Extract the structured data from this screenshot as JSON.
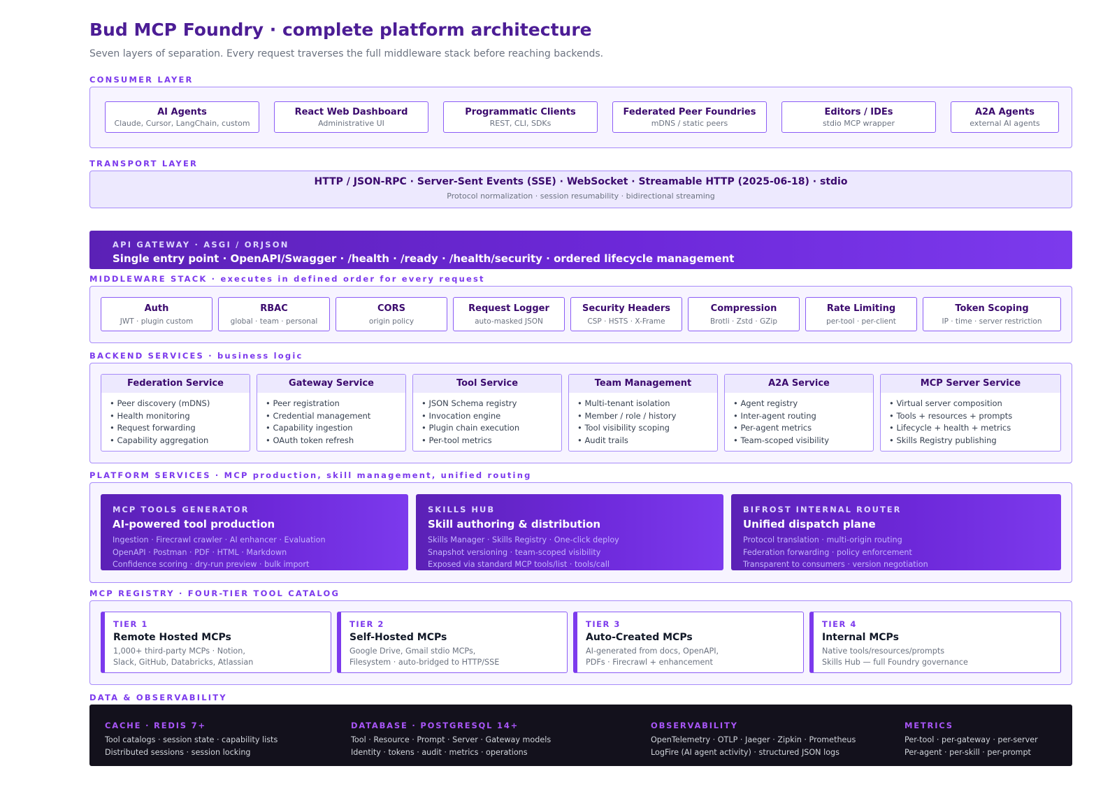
{
  "header": {
    "title": "Bud MCP Foundry · complete platform architecture",
    "subtitle": "Seven layers of separation. Every request traverses the full middleware stack before reaching backends."
  },
  "consumer": {
    "label": "CONSUMER LAYER",
    "items": [
      {
        "title": "AI Agents",
        "sub": "Claude, Cursor, LangChain, custom"
      },
      {
        "title": "React Web Dashboard",
        "sub": "Administrative UI"
      },
      {
        "title": "Programmatic Clients",
        "sub": "REST, CLI, SDKs"
      },
      {
        "title": "Federated Peer Foundries",
        "sub": "mDNS / static peers"
      },
      {
        "title": "Editors / IDEs",
        "sub": "stdio MCP wrapper"
      },
      {
        "title": "A2A Agents",
        "sub": "external AI agents"
      }
    ]
  },
  "transport": {
    "label": "TRANSPORT LAYER",
    "title": "HTTP / JSON-RPC · Server-Sent Events (SSE) · WebSocket · Streamable HTTP (2025-06-18) · stdio",
    "sub": "Protocol normalization · session resumability · bidirectional streaming"
  },
  "gateway": {
    "kicker": "API GATEWAY · ASGI / ORJSON",
    "title": "Single entry point · OpenAPI/Swagger · /health · /ready · /health/security · ordered lifecycle management"
  },
  "middleware": {
    "label": "MIDDLEWARE STACK · executes in defined order for every request",
    "items": [
      {
        "title": "Auth",
        "sub": "JWT · plugin custom"
      },
      {
        "title": "RBAC",
        "sub": "global · team · personal"
      },
      {
        "title": "CORS",
        "sub": "origin policy"
      },
      {
        "title": "Request Logger",
        "sub": "auto-masked JSON"
      },
      {
        "title": "Security Headers",
        "sub": "CSP · HSTS · X-Frame"
      },
      {
        "title": "Compression",
        "sub": "Brotli · Zstd · GZip"
      },
      {
        "title": "Rate Limiting",
        "sub": "per-tool · per-client"
      },
      {
        "title": "Token Scoping",
        "sub": "IP · time · server restriction"
      }
    ]
  },
  "backend": {
    "label": "BACKEND SERVICES · business logic",
    "items": [
      {
        "title": "Federation Service",
        "bullets": [
          "• Peer discovery (mDNS)",
          "• Health monitoring",
          "• Request forwarding",
          "• Capability aggregation"
        ]
      },
      {
        "title": "Gateway Service",
        "bullets": [
          "• Peer registration",
          "• Credential management",
          "• Capability ingestion",
          "• OAuth token refresh"
        ]
      },
      {
        "title": "Tool Service",
        "bullets": [
          "• JSON Schema registry",
          "• Invocation engine",
          "• Plugin chain execution",
          "• Per-tool metrics"
        ]
      },
      {
        "title": "Team Management",
        "bullets": [
          "• Multi-tenant isolation",
          "• Member / role / history",
          "• Tool visibility scoping",
          "• Audit trails"
        ]
      },
      {
        "title": "A2A Service",
        "bullets": [
          "• Agent registry",
          "• Inter-agent routing",
          "• Per-agent metrics",
          "• Team-scoped visibility"
        ]
      },
      {
        "title": "MCP Server Service",
        "bullets": [
          "• Virtual server composition",
          "• Tools + resources + prompts",
          "• Lifecycle + health + metrics",
          "• Skills Registry publishing"
        ]
      }
    ]
  },
  "platform": {
    "label": "PLATFORM SERVICES · MCP production, skill management, unified routing",
    "items": [
      {
        "kicker": "MCP TOOLS GENERATOR",
        "title": "AI-powered tool production",
        "lines": [
          "Ingestion · Firecrawl crawler · AI enhancer · Evaluation",
          "OpenAPI · Postman · PDF · HTML · Markdown",
          "Confidence scoring · dry-run preview · bulk import"
        ]
      },
      {
        "kicker": "SKILLS HUB",
        "title": "Skill authoring & distribution",
        "lines": [
          "Skills Manager · Skills Registry · One-click deploy",
          "Snapshot versioning · team-scoped visibility",
          "Exposed via standard MCP tools/list · tools/call"
        ]
      },
      {
        "kicker": "BIFROST INTERNAL ROUTER",
        "title": "Unified dispatch plane",
        "lines": [
          "Protocol translation · multi-origin routing",
          "Federation forwarding · policy enforcement",
          "Transparent to consumers · version negotiation"
        ]
      }
    ]
  },
  "registry": {
    "label": "MCP REGISTRY · FOUR-TIER TOOL CATALOG",
    "items": [
      {
        "kicker": "TIER 1",
        "title": "Remote Hosted MCPs",
        "lines": [
          "1,000+ third-party MCPs · Notion,",
          "Slack, GitHub, Databricks, Atlassian"
        ]
      },
      {
        "kicker": "TIER 2",
        "title": "Self-Hosted MCPs",
        "lines": [
          "Google Drive, Gmail stdio MCPs,",
          "Filesystem · auto-bridged to HTTP/SSE"
        ]
      },
      {
        "kicker": "TIER 3",
        "title": "Auto-Created MCPs",
        "lines": [
          "AI-generated from docs, OpenAPI,",
          "PDFs · Firecrawl + enhancement"
        ]
      },
      {
        "kicker": "TIER 4",
        "title": "Internal MCPs",
        "lines": [
          "Native tools/resources/prompts",
          "Skills Hub — full Foundry governance"
        ]
      }
    ]
  },
  "data": {
    "label": "DATA & OBSERVABILITY",
    "items": [
      {
        "kicker": "CACHE · REDIS 7+",
        "lines": [
          "Tool catalogs · session state · capability lists",
          "Distributed sessions · session locking"
        ]
      },
      {
        "kicker": "DATABASE · POSTGRESQL 14+",
        "lines": [
          "Tool · Resource · Prompt · Server · Gateway models",
          "Identity · tokens · audit · metrics · operations"
        ]
      },
      {
        "kicker": "OBSERVABILITY",
        "lines": [
          "OpenTelemetry · OTLP · Jaeger · Zipkin · Prometheus",
          "LogFire (AI agent activity) · structured JSON logs"
        ]
      },
      {
        "kicker": "METRICS",
        "lines": [
          "Per-tool · per-gateway · per-server",
          "Per-agent · per-skill · per-prompt"
        ]
      }
    ]
  },
  "colors": {
    "accent": "#7c3aed",
    "deep_purple": "#4c1d95",
    "dark_panel": "#13111c"
  }
}
